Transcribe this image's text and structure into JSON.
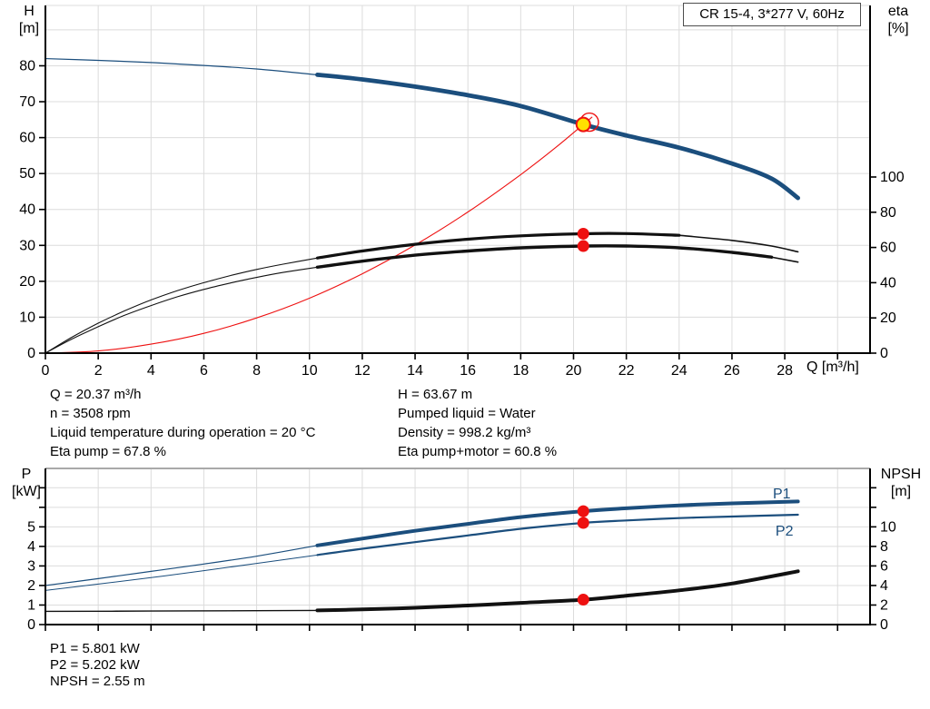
{
  "window": {
    "curve_title": "CR 15-4, 3*277 V, 60Hz"
  },
  "colors": {
    "blue": "#1b4e7d",
    "red": "#ee1111",
    "black": "#111111",
    "yellow": "#ffe100",
    "grid": "#dcdcdc",
    "axis": "#000000",
    "border_gray": "#a9a9a9"
  },
  "info_top_left": [
    "Q = 20.37 m³/h",
    "n = 3508 rpm",
    "Liquid temperature during operation = 20 °C",
    "Eta pump = 67.8 %"
  ],
  "info_top_right": [
    "H = 63.67 m",
    "Pumped liquid = Water",
    "Density = 998.2 kg/m³",
    "Eta pump+motor = 60.8 %"
  ],
  "info_bottom": [
    "P1 = 5.801 kW",
    "P2 = 5.202 kW",
    "NPSH = 2.55 m"
  ],
  "chart_data": [
    {
      "type": "line",
      "name": "qh-eta-chart",
      "title": "CR 15-4, 3*277 V, 60Hz",
      "x_axis": {
        "label": "Q [m³/h]",
        "min": 0,
        "max": 31.23,
        "ticks": [
          {
            "v": 0,
            "t": "0"
          },
          {
            "v": 2,
            "t": "2"
          },
          {
            "v": 4,
            "t": "4"
          },
          {
            "v": 6,
            "t": "6"
          },
          {
            "v": 8,
            "t": "8"
          },
          {
            "v": 10,
            "t": "10"
          },
          {
            "v": 12,
            "t": "12"
          },
          {
            "v": 14,
            "t": "14"
          },
          {
            "v": 16,
            "t": "16"
          },
          {
            "v": 18,
            "t": "18"
          },
          {
            "v": 20,
            "t": "20"
          },
          {
            "v": 22,
            "t": "22"
          },
          {
            "v": 24,
            "t": "24"
          },
          {
            "v": 26,
            "t": "26"
          },
          {
            "v": 28,
            "t": "28"
          },
          {
            "v": 30,
            "t": ""
          }
        ]
      },
      "left_axis": {
        "label_lines": [
          "H",
          "[m]"
        ],
        "min": 0,
        "max": 96.8,
        "ticks": [
          {
            "v": 0,
            "t": "0"
          },
          {
            "v": 10,
            "t": "10"
          },
          {
            "v": 20,
            "t": "20"
          },
          {
            "v": 30,
            "t": "30"
          },
          {
            "v": 40,
            "t": "40"
          },
          {
            "v": 50,
            "t": "50"
          },
          {
            "v": 60,
            "t": "60"
          },
          {
            "v": 70,
            "t": "70"
          },
          {
            "v": 80,
            "t": "80"
          }
        ]
      },
      "right_axis": {
        "label_lines": [
          "eta",
          "[%]"
        ],
        "min": 0,
        "max": 197.4,
        "ticks": [
          {
            "v": 0,
            "t": "0"
          },
          {
            "v": 20,
            "t": "20"
          },
          {
            "v": 40,
            "t": "40"
          },
          {
            "v": 60,
            "t": "60"
          },
          {
            "v": 80,
            "t": "80"
          },
          {
            "v": 100,
            "t": "100"
          }
        ]
      },
      "series": [
        {
          "name": "head-curve",
          "axis": "left",
          "color": "#1b4e7d",
          "points": [
            [
              0,
              82
            ],
            [
              2,
              81.5
            ],
            [
              4,
              80.9
            ],
            [
              6,
              80.1
            ],
            [
              8,
              79.1
            ],
            [
              10.3,
              77.5
            ],
            [
              12,
              76.2
            ],
            [
              14,
              74.2
            ],
            [
              16,
              71.8
            ],
            [
              18,
              68.8
            ],
            [
              20.37,
              63.67
            ],
            [
              22,
              60.6
            ],
            [
              24,
              57.2
            ],
            [
              26,
              52.8
            ],
            [
              27.5,
              48.6
            ],
            [
              28.5,
              43.2
            ]
          ],
          "segments": [
            {
              "to": 10.3,
              "w": 1.2
            },
            {
              "to": 28.5,
              "w": 4.8
            }
          ]
        },
        {
          "name": "system-curve",
          "axis": "left",
          "color": "#ee1111",
          "points": [
            [
              0,
              0
            ],
            [
              2,
              0.6
            ],
            [
              4,
              2.5
            ],
            [
              6,
              5.5
            ],
            [
              8,
              9.8
            ],
            [
              10,
              15.3
            ],
            [
              12,
              22.1
            ],
            [
              14,
              30.1
            ],
            [
              16,
              39.3
            ],
            [
              18,
              49.7
            ],
            [
              19.3,
              57.1
            ],
            [
              20.37,
              63.67
            ],
            [
              20.7,
              65.7
            ]
          ],
          "segments": [
            {
              "to": 20.7,
              "w": 1.1
            }
          ]
        },
        {
          "name": "eta-pump-curve",
          "axis": "right",
          "color": "#111111",
          "points": [
            [
              0,
              0
            ],
            [
              1,
              9
            ],
            [
              2,
              17
            ],
            [
              3,
              24
            ],
            [
              4,
              30.2
            ],
            [
              5,
              35.5
            ],
            [
              6,
              40
            ],
            [
              7,
              44
            ],
            [
              8,
              47.5
            ],
            [
              9,
              50.5
            ],
            [
              10.3,
              54
            ],
            [
              12,
              58
            ],
            [
              14,
              61.8
            ],
            [
              16,
              64.7
            ],
            [
              18,
              66.6
            ],
            [
              20.37,
              67.8
            ],
            [
              22,
              67.9
            ],
            [
              24,
              66.9
            ],
            [
              26,
              64
            ],
            [
              27.5,
              60.8
            ],
            [
              28.5,
              57.5
            ]
          ],
          "segments": [
            {
              "to": 10.3,
              "w": 1.1
            },
            {
              "to": 24,
              "w": 3.2
            },
            {
              "to": 28.5,
              "w": 1.6
            }
          ]
        },
        {
          "name": "eta-pump-motor-curve",
          "axis": "right",
          "color": "#111111",
          "points": [
            [
              0,
              0
            ],
            [
              1,
              8
            ],
            [
              2,
              15
            ],
            [
              3,
              21.5
            ],
            [
              4,
              27
            ],
            [
              5,
              32
            ],
            [
              6,
              36.2
            ],
            [
              7,
              39.8
            ],
            [
              8,
              43
            ],
            [
              9,
              45.8
            ],
            [
              10.3,
              48.8
            ],
            [
              12,
              52.2
            ],
            [
              14,
              55.6
            ],
            [
              16,
              58
            ],
            [
              18,
              59.8
            ],
            [
              20.37,
              60.8
            ],
            [
              22,
              60.8
            ],
            [
              24,
              59.8
            ],
            [
              26,
              57.2
            ],
            [
              27.5,
              54.5
            ],
            [
              28.5,
              51.7
            ]
          ],
          "segments": [
            {
              "to": 10.3,
              "w": 1.1
            },
            {
              "to": 27.5,
              "w": 3.4
            },
            {
              "to": 28.5,
              "w": 1.6
            }
          ]
        }
      ],
      "markers": [
        {
          "name": "duty-ring",
          "kind": "ring",
          "axis": "left",
          "q": 20.6,
          "value": 64.3
        },
        {
          "name": "duty-point",
          "kind": "duty",
          "axis": "left",
          "q": 20.37,
          "value": 63.67
        },
        {
          "name": "eta-pump-dot",
          "kind": "dot",
          "axis": "right",
          "q": 20.37,
          "value": 67.8
        },
        {
          "name": "eta-pump-motor-dot",
          "kind": "dot",
          "axis": "right",
          "q": 20.37,
          "value": 60.8
        }
      ],
      "curve_labels": []
    },
    {
      "type": "line",
      "name": "power-npsh-chart",
      "x_axis": {
        "label": "",
        "min": 0,
        "max": 31.23,
        "ticks": [
          {
            "v": 0,
            "t": ""
          },
          {
            "v": 2,
            "t": ""
          },
          {
            "v": 4,
            "t": ""
          },
          {
            "v": 6,
            "t": ""
          },
          {
            "v": 8,
            "t": ""
          },
          {
            "v": 10,
            "t": ""
          },
          {
            "v": 12,
            "t": ""
          },
          {
            "v": 14,
            "t": ""
          },
          {
            "v": 16,
            "t": ""
          },
          {
            "v": 18,
            "t": ""
          },
          {
            "v": 20,
            "t": ""
          },
          {
            "v": 22,
            "t": ""
          },
          {
            "v": 24,
            "t": ""
          },
          {
            "v": 26,
            "t": ""
          },
          {
            "v": 28,
            "t": ""
          },
          {
            "v": 30,
            "t": ""
          }
        ]
      },
      "left_axis": {
        "label_lines": [
          "P",
          "[kW]"
        ],
        "min": 0,
        "max": 7.99,
        "ticks": [
          {
            "v": 0,
            "t": "0"
          },
          {
            "v": 1,
            "t": "1"
          },
          {
            "v": 2,
            "t": "2"
          },
          {
            "v": 3,
            "t": "3"
          },
          {
            "v": 4,
            "t": "4"
          },
          {
            "v": 5,
            "t": "5"
          },
          {
            "v": 6,
            "t": ""
          },
          {
            "v": 7,
            "t": ""
          }
        ]
      },
      "right_axis": {
        "label_lines": [
          "NPSH",
          "[m]"
        ],
        "min": 0,
        "max": 15.98,
        "ticks": [
          {
            "v": 0,
            "t": "0"
          },
          {
            "v": 2,
            "t": "2"
          },
          {
            "v": 4,
            "t": "4"
          },
          {
            "v": 6,
            "t": "6"
          },
          {
            "v": 8,
            "t": "8"
          },
          {
            "v": 10,
            "t": "10"
          },
          {
            "v": 12,
            "t": ""
          },
          {
            "v": 14,
            "t": ""
          }
        ]
      },
      "series": [
        {
          "name": "p1-curve",
          "axis": "left",
          "color": "#1b4e7d",
          "points": [
            [
              0,
              2.0
            ],
            [
              2,
              2.35
            ],
            [
              4,
              2.72
            ],
            [
              6,
              3.1
            ],
            [
              8,
              3.5
            ],
            [
              10.3,
              4.05
            ],
            [
              12,
              4.4
            ],
            [
              14,
              4.8
            ],
            [
              16,
              5.15
            ],
            [
              18,
              5.5
            ],
            [
              20.37,
              5.801
            ],
            [
              22,
              5.95
            ],
            [
              24,
              6.1
            ],
            [
              26,
              6.2
            ],
            [
              28.5,
              6.3
            ]
          ],
          "segments": [
            {
              "to": 10.3,
              "w": 1.2
            },
            {
              "to": 28.5,
              "w": 4
            }
          ]
        },
        {
          "name": "p2-curve",
          "axis": "left",
          "color": "#1b4e7d",
          "points": [
            [
              0,
              1.75
            ],
            [
              2,
              2.07
            ],
            [
              4,
              2.4
            ],
            [
              6,
              2.76
            ],
            [
              8,
              3.13
            ],
            [
              10.3,
              3.56
            ],
            [
              12,
              3.88
            ],
            [
              14,
              4.22
            ],
            [
              16,
              4.56
            ],
            [
              18,
              4.9
            ],
            [
              20.37,
              5.202
            ],
            [
              22,
              5.33
            ],
            [
              24,
              5.45
            ],
            [
              26,
              5.53
            ],
            [
              28.5,
              5.62
            ]
          ],
          "segments": [
            {
              "to": 10.3,
              "w": 1
            },
            {
              "to": 28.5,
              "w": 2.2
            }
          ]
        },
        {
          "name": "npsh-curve",
          "axis": "right",
          "color": "#111111",
          "points": [
            [
              0,
              1.35
            ],
            [
              4,
              1.38
            ],
            [
              8,
              1.42
            ],
            [
              10.3,
              1.45
            ],
            [
              12,
              1.55
            ],
            [
              14,
              1.72
            ],
            [
              16,
              1.95
            ],
            [
              18,
              2.22
            ],
            [
              20.37,
              2.55
            ],
            [
              22,
              2.95
            ],
            [
              24,
              3.5
            ],
            [
              26,
              4.2
            ],
            [
              28.5,
              5.45
            ]
          ],
          "segments": [
            {
              "to": 10.3,
              "w": 1.4
            },
            {
              "to": 28.5,
              "w": 4
            }
          ]
        }
      ],
      "markers": [
        {
          "name": "p1-dot",
          "kind": "dot",
          "axis": "left",
          "q": 20.37,
          "value": 5.801
        },
        {
          "name": "p2-dot",
          "kind": "dot",
          "axis": "left",
          "q": 20.37,
          "value": 5.202
        },
        {
          "name": "npsh-dot",
          "kind": "dot",
          "axis": "right",
          "q": 20.37,
          "value": 2.55
        }
      ],
      "curve_labels": [
        {
          "t": "P1",
          "q": 27.55,
          "v": 6.46,
          "color": "#1b4e7d"
        },
        {
          "t": "P2",
          "q": 27.65,
          "v": 4.55,
          "color": "#1b4e7d"
        }
      ]
    }
  ]
}
